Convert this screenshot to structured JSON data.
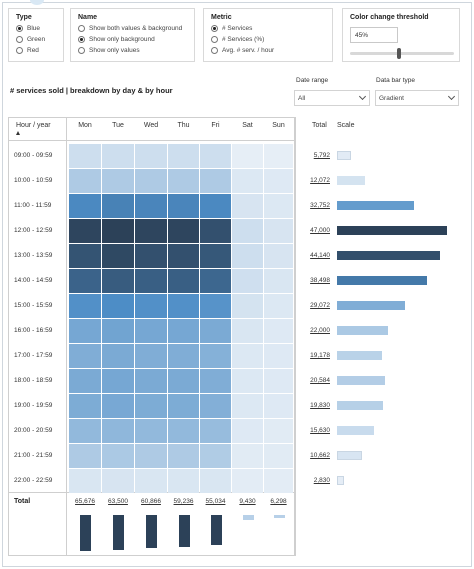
{
  "filters": {
    "type": {
      "title": "Type",
      "options": [
        {
          "label": "Blue",
          "selected": true
        },
        {
          "label": "Green",
          "selected": false
        },
        {
          "label": "Red",
          "selected": false
        }
      ]
    },
    "name": {
      "title": "Name",
      "options": [
        {
          "label": "Show both values & background",
          "selected": false
        },
        {
          "label": "Show only background",
          "selected": true
        },
        {
          "label": "Show only values",
          "selected": false
        }
      ]
    },
    "metric": {
      "title": "Metric",
      "options": [
        {
          "label": "# Services",
          "selected": true
        },
        {
          "label": "# Services (%)",
          "selected": false
        },
        {
          "label": "Avg. # serv. / hour",
          "selected": false
        }
      ]
    },
    "threshold": {
      "title": "Color change threshold",
      "value": "45%",
      "slider_fraction": 0.45
    }
  },
  "title": "# services sold | breakdown by day & by hour",
  "date_range": {
    "label": "Date range",
    "value": "All"
  },
  "data_bar_type": {
    "label": "Data bar type",
    "value": "Gradient"
  },
  "headers": {
    "hour": "Hour / year",
    "days": [
      "Mon",
      "Tue",
      "Wed",
      "Thu",
      "Fri",
      "Sat",
      "Sun"
    ],
    "total": "Total",
    "scale": "Scale"
  },
  "rows": [
    {
      "label": "09:00 - 09:59",
      "total": "5,792"
    },
    {
      "label": "10:00 - 10:59",
      "total": "12,072"
    },
    {
      "label": "11:00 - 11:59",
      "total": "32,752"
    },
    {
      "label": "12:00 - 12:59",
      "total": "47,000"
    },
    {
      "label": "13:00 - 13:59",
      "total": "44,140"
    },
    {
      "label": "14:00 - 14:59",
      "total": "38,498"
    },
    {
      "label": "15:00 - 15:59",
      "total": "29,072"
    },
    {
      "label": "16:00 - 16:59",
      "total": "22,000"
    },
    {
      "label": "17:00 - 17:59",
      "total": "19,178"
    },
    {
      "label": "18:00 - 18:59",
      "total": "20,584"
    },
    {
      "label": "19:00 - 19:59",
      "total": "19,830"
    },
    {
      "label": "20:00 - 20:59",
      "total": "15,630"
    },
    {
      "label": "21:00 - 21:59",
      "total": "10,662"
    },
    {
      "label": "22:00 - 22:59",
      "total": "2,830"
    }
  ],
  "row_values": [
    5792,
    12072,
    32752,
    47000,
    44140,
    38498,
    29072,
    22000,
    19178,
    20584,
    19830,
    15630,
    10662,
    2830
  ],
  "intensity": [
    [
      0.1,
      0.1,
      0.1,
      0.1,
      0.1,
      0.0,
      0.0
    ],
    [
      0.22,
      0.22,
      0.22,
      0.22,
      0.22,
      0.04,
      0.03
    ],
    [
      0.62,
      0.66,
      0.64,
      0.64,
      0.62,
      0.06,
      0.04
    ],
    [
      0.98,
      1.0,
      0.98,
      0.98,
      0.92,
      0.1,
      0.06
    ],
    [
      0.9,
      0.96,
      0.92,
      0.92,
      0.88,
      0.1,
      0.06
    ],
    [
      0.82,
      0.86,
      0.84,
      0.84,
      0.8,
      0.09,
      0.05
    ],
    [
      0.58,
      0.6,
      0.58,
      0.58,
      0.56,
      0.07,
      0.04
    ],
    [
      0.44,
      0.46,
      0.44,
      0.44,
      0.42,
      0.05,
      0.03
    ],
    [
      0.4,
      0.42,
      0.4,
      0.4,
      0.38,
      0.04,
      0.03
    ],
    [
      0.42,
      0.44,
      0.42,
      0.42,
      0.4,
      0.04,
      0.03
    ],
    [
      0.41,
      0.43,
      0.41,
      0.41,
      0.39,
      0.04,
      0.03
    ],
    [
      0.33,
      0.34,
      0.33,
      0.33,
      0.31,
      0.03,
      0.02
    ],
    [
      0.22,
      0.23,
      0.22,
      0.22,
      0.21,
      0.02,
      0.02
    ],
    [
      0.05,
      0.06,
      0.05,
      0.05,
      0.05,
      0.01,
      0.01
    ]
  ],
  "total_row": {
    "label": "Total",
    "values": [
      "65,676",
      "63,500",
      "60,866",
      "59,236",
      "55,034",
      "9,430",
      "6,298"
    ],
    "numbers": [
      65676,
      63500,
      60866,
      59236,
      55034,
      9430,
      6298
    ]
  },
  "colors": {
    "dark": "#2c4158",
    "mid": "#4d8dc6",
    "light": "#e6eef6",
    "bar_light": "#b7d0e8"
  }
}
